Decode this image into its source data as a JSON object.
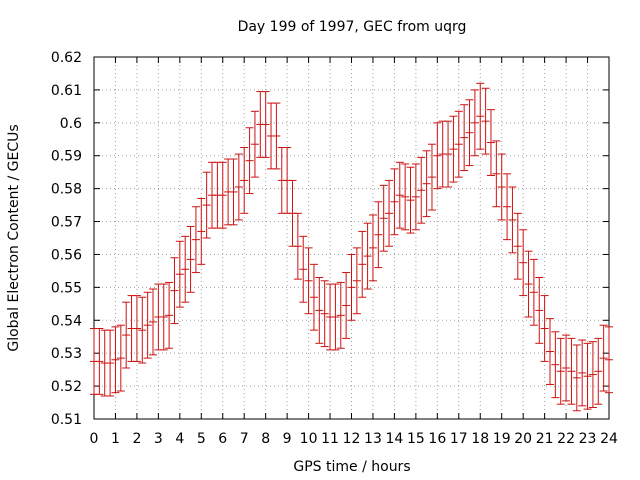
{
  "chart_data": {
    "type": "scatter",
    "title": "Day 199 of 1997, GEC from uqrg",
    "xlabel": "GPS time / hours",
    "ylabel": "Global Electron Content / GECUs",
    "xlim": [
      0,
      24
    ],
    "ylim": [
      0.51,
      0.62
    ],
    "xticks": [
      "0",
      "1",
      "2",
      "3",
      "4",
      "5",
      "6",
      "7",
      "8",
      "9",
      "10",
      "11",
      "12",
      "13",
      "14",
      "15",
      "16",
      "17",
      "18",
      "19",
      "20",
      "21",
      "22",
      "23",
      "24"
    ],
    "yticks": [
      "0.51",
      "0.52",
      "0.53",
      "0.54",
      "0.55",
      "0.56",
      "0.57",
      "0.58",
      "0.59",
      "0.6",
      "0.61",
      "0.62"
    ],
    "grid": true,
    "error": 0.01,
    "series": [
      {
        "name": "GEC",
        "color": "#cc1111",
        "x": [
          0,
          0.25,
          0.5,
          0.75,
          1,
          1.25,
          1.5,
          1.75,
          2,
          2.25,
          2.5,
          2.75,
          3,
          3.25,
          3.5,
          3.75,
          4,
          4.25,
          4.5,
          4.75,
          5,
          5.25,
          5.5,
          5.75,
          6,
          6.25,
          6.5,
          6.75,
          7,
          7.25,
          7.5,
          7.75,
          8,
          8.25,
          8.5,
          8.75,
          9,
          9.25,
          9.5,
          9.75,
          10,
          10.25,
          10.5,
          10.75,
          11,
          11.25,
          11.5,
          11.75,
          12,
          12.25,
          12.5,
          12.75,
          13,
          13.25,
          13.5,
          13.75,
          14,
          14.25,
          14.5,
          14.75,
          15,
          15.25,
          15.5,
          15.75,
          16,
          16.25,
          16.5,
          16.75,
          17,
          17.25,
          17.5,
          17.75,
          18,
          18.25,
          18.5,
          18.75,
          19,
          19.25,
          19.5,
          19.75,
          20,
          20.25,
          20.5,
          20.75,
          21,
          21.25,
          21.5,
          21.75,
          22,
          22.25,
          22.5,
          22.75,
          23,
          23.25,
          23.5,
          23.75,
          24
        ],
        "y": [
          0.5275,
          0.5275,
          0.527,
          0.527,
          0.528,
          0.5285,
          0.5355,
          0.5375,
          0.5375,
          0.537,
          0.5385,
          0.5395,
          0.541,
          0.541,
          0.5415,
          0.549,
          0.554,
          0.5555,
          0.5585,
          0.5645,
          0.567,
          0.575,
          0.578,
          0.578,
          0.578,
          0.579,
          0.579,
          0.5805,
          0.5825,
          0.5885,
          0.5935,
          0.5995,
          0.5995,
          0.596,
          0.596,
          0.5825,
          0.5825,
          0.5725,
          0.5625,
          0.5555,
          0.552,
          0.547,
          0.543,
          0.542,
          0.541,
          0.541,
          0.5415,
          0.5445,
          0.55,
          0.552,
          0.557,
          0.5595,
          0.562,
          0.566,
          0.571,
          0.5725,
          0.576,
          0.578,
          0.5775,
          0.5765,
          0.5775,
          0.5795,
          0.5815,
          0.5835,
          0.59,
          0.5905,
          0.5905,
          0.592,
          0.5935,
          0.5955,
          0.597,
          0.6,
          0.602,
          0.6005,
          0.594,
          0.5845,
          0.5805,
          0.5745,
          0.5705,
          0.5625,
          0.5575,
          0.551,
          0.5485,
          0.543,
          0.5375,
          0.5305,
          0.5265,
          0.5245,
          0.5255,
          0.5245,
          0.5225,
          0.524,
          0.523,
          0.5235,
          0.5245,
          0.5285,
          0.528
        ]
      }
    ]
  }
}
